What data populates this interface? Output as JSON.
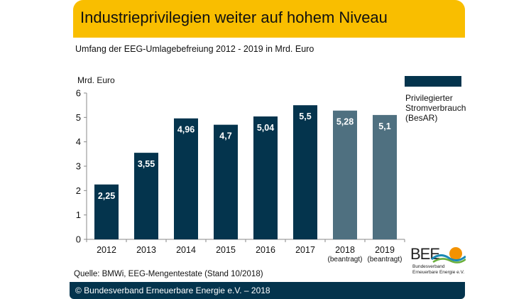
{
  "header": {
    "title": "Industrieprivilegien  weiter auf hohem Niveau"
  },
  "subtitle": "Umfang  der EEG-Umlagebefreiung  2012 - 2019 in Mrd.  Euro",
  "source": "Quelle:  BMWi, EEG-Mengentestate  (Stand 10/2018)",
  "footer": {
    "text": "© Bundesverband  Erneuerbare Energie e.V. – 2018"
  },
  "logo": {
    "name": "BEE",
    "line1": "Bundesverband",
    "line2": "Erneuerbare Energie e.V."
  },
  "colors": {
    "header": "#F9BE00",
    "bar_actual": "#04344D",
    "bar_projected": "#4F7080",
    "footer": "#04344D"
  },
  "chart_data": {
    "type": "bar",
    "title": "Umfang der EEG-Umlagebefreiung 2012 - 2019 in Mrd. Euro",
    "xlabel": "",
    "ylabel": "Mrd. Euro",
    "ylim": [
      0,
      6
    ],
    "yticks": [
      0,
      1,
      2,
      3,
      4,
      5,
      6
    ],
    "grid": false,
    "categories": [
      "2012",
      "2013",
      "2014",
      "2015",
      "2016",
      "2017",
      "2018",
      "2019"
    ],
    "category_sublabels": [
      "",
      "",
      "",
      "",
      "",
      "",
      "(beantragt)",
      "(beantragt)"
    ],
    "values": [
      2.25,
      3.55,
      4.96,
      4.7,
      5.04,
      5.5,
      5.28,
      5.1
    ],
    "value_labels": [
      "2,25",
      "3,55",
      "4,96",
      "4,7",
      "5,04",
      "5,5",
      "5,28",
      "5,1"
    ],
    "projected": [
      false,
      false,
      false,
      false,
      false,
      false,
      true,
      true
    ],
    "legend": {
      "position": "top-right",
      "entries": [
        {
          "label": "Privilegierter Stromverbrauch (BesAR)",
          "color": "#04344D"
        }
      ]
    }
  }
}
